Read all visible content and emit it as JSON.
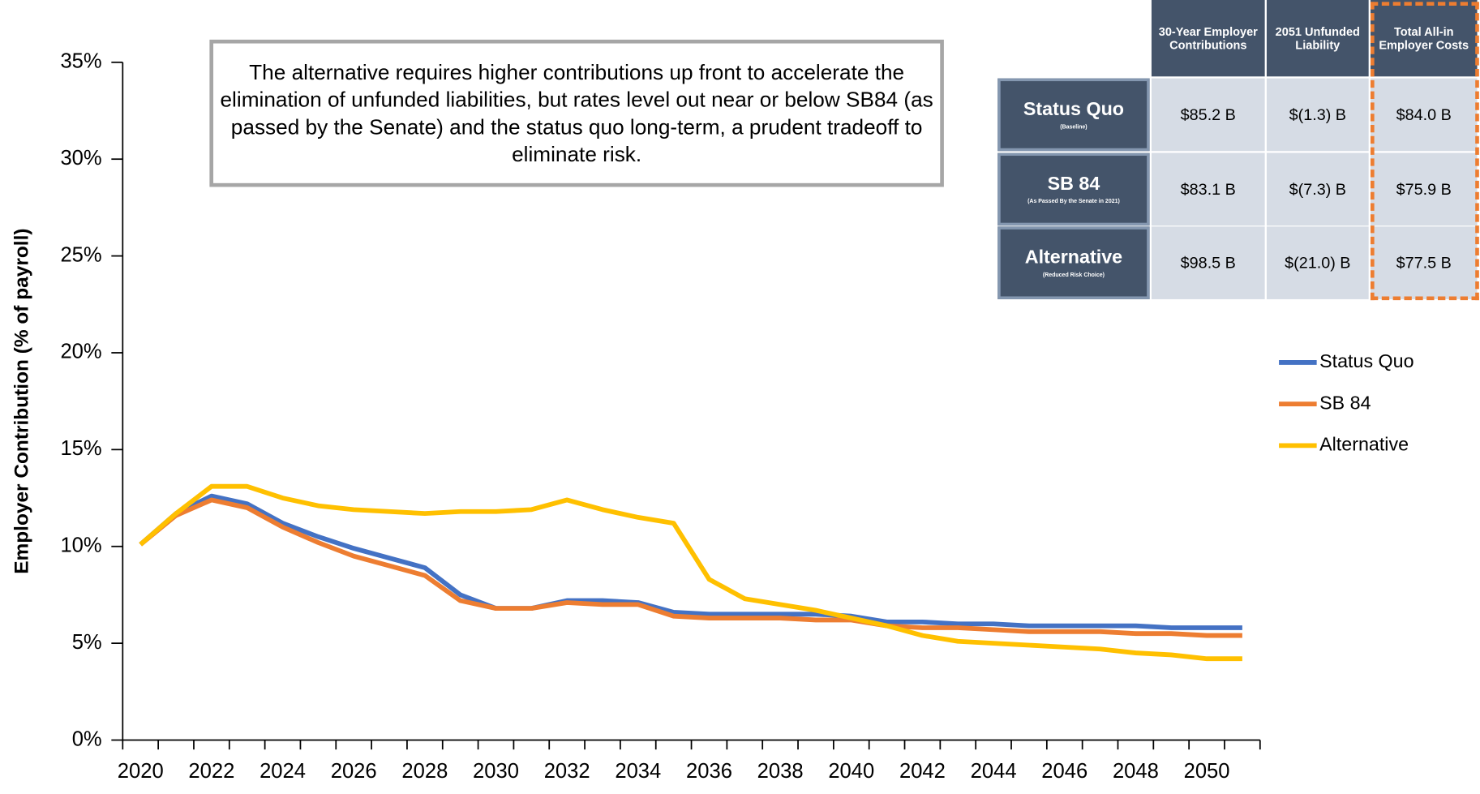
{
  "chart_data": {
    "type": "line",
    "ylabel": "Employer Contribution (% of payroll)",
    "annotation": "The alternative requires higher contributions up front to accelerate the elimination of unfunded liabilities, but rates level out near or below SB84 (as passed by the Senate) and the status quo long-term, a prudent tradeoff to eliminate risk.",
    "categories": [
      "2020",
      null,
      "2022",
      null,
      "2024",
      null,
      "2026",
      null,
      "2028",
      null,
      "2030",
      null,
      "2032",
      null,
      "2034",
      null,
      "2036",
      null,
      "2038",
      null,
      "2040",
      null,
      "2042",
      null,
      "2044",
      null,
      "2046",
      null,
      "2048",
      null,
      "2050",
      null
    ],
    "series": [
      {
        "name": "Status Quo",
        "color": "#4472c4",
        "values": [
          10.1,
          11.7,
          12.6,
          12.2,
          11.2,
          10.5,
          9.9,
          9.4,
          8.9,
          7.5,
          6.8,
          6.8,
          7.2,
          7.2,
          7.1,
          6.6,
          6.5,
          6.5,
          6.5,
          6.5,
          6.4,
          6.1,
          6.1,
          6.0,
          6.0,
          5.9,
          5.9,
          5.9,
          5.9,
          5.8,
          5.8,
          5.8
        ]
      },
      {
        "name": "SB 84",
        "color": "#ed7d31",
        "values": [
          10.1,
          11.6,
          12.4,
          12.0,
          11.0,
          10.2,
          9.5,
          9.0,
          8.5,
          7.2,
          6.8,
          6.8,
          7.1,
          7.0,
          7.0,
          6.4,
          6.3,
          6.3,
          6.3,
          6.2,
          6.2,
          5.9,
          5.8,
          5.8,
          5.7,
          5.6,
          5.6,
          5.6,
          5.5,
          5.5,
          5.4,
          5.4
        ]
      },
      {
        "name": "Alternative",
        "color": "#ffc000",
        "values": [
          10.1,
          11.7,
          13.1,
          13.1,
          12.5,
          12.1,
          11.9,
          11.8,
          11.7,
          11.8,
          11.8,
          11.9,
          12.4,
          11.9,
          11.5,
          11.2,
          8.3,
          7.3,
          7.0,
          6.7,
          6.3,
          5.9,
          5.4,
          5.1,
          5.0,
          4.9,
          4.8,
          4.7,
          4.5,
          4.4,
          4.2,
          4.2
        ]
      }
    ],
    "ylim": [
      0,
      35
    ],
    "yticks": [
      {
        "value": 0,
        "label": "0%"
      },
      {
        "value": 5,
        "label": "5%"
      },
      {
        "value": 10,
        "label": "10%"
      },
      {
        "value": 15,
        "label": "15%"
      },
      {
        "value": 20,
        "label": "20%"
      },
      {
        "value": 25,
        "label": "25%"
      },
      {
        "value": 30,
        "label": "30%"
      },
      {
        "value": 35,
        "label": "35%"
      }
    ],
    "legend": "right"
  },
  "table": {
    "columns": [
      "30-Year Employer Contributions",
      "2051 Unfunded Liability",
      "Total All-in Employer Costs"
    ],
    "rows": [
      {
        "name": "Status Quo",
        "note": "(Baseline)",
        "cells": [
          "$85.2 B",
          "$(1.3) B",
          "$84.0 B"
        ]
      },
      {
        "name": "SB 84",
        "note": "(As Passed By the Senate in 2021)",
        "cells": [
          "$83.1 B",
          "$(7.3) B",
          "$75.9 B"
        ]
      },
      {
        "name": "Alternative",
        "note": "(Reduced Risk Choice)",
        "cells": [
          "$98.5 B",
          "$(21.0) B",
          "$77.5 B"
        ]
      }
    ]
  }
}
